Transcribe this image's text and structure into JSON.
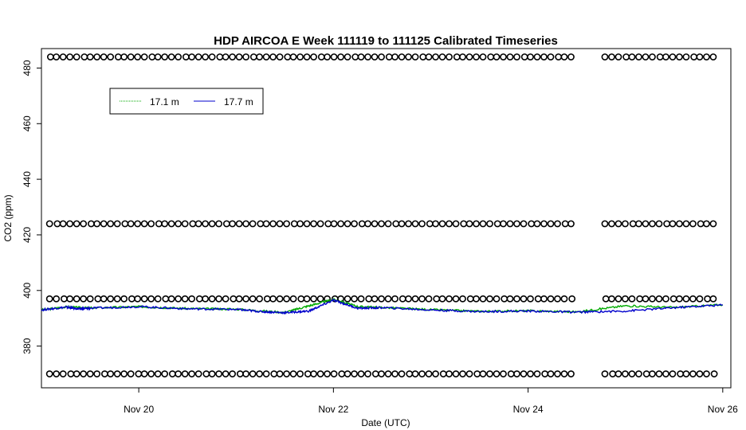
{
  "chart_data": {
    "type": "scatter",
    "title": "HDP AIRCOA E  Week 111119 to 111125  Calibrated Timeseries",
    "xlabel": "Date (UTC)",
    "ylabel": "CO2 (ppm)",
    "xlim": [
      "2011-11-19 00:00",
      "2011-11-26 02:00"
    ],
    "ylim": [
      365,
      487
    ],
    "x_ticks": [
      {
        "value": "2011-11-20",
        "label": "Nov 20"
      },
      {
        "value": "2011-11-22",
        "label": "Nov 22"
      },
      {
        "value": "2011-11-24",
        "label": "Nov 24"
      },
      {
        "value": "2011-11-26",
        "label": "Nov 26"
      }
    ],
    "y_ticks": [
      380,
      400,
      420,
      440,
      460,
      480
    ],
    "grid": false,
    "legend": {
      "placement": "top-left",
      "entries": [
        {
          "label": "17.1 m",
          "color": "#00aa00"
        },
        {
          "label": "17.7 m",
          "color": "#0000cc"
        }
      ]
    },
    "calibration_series": {
      "marker": "open-circle",
      "color": "#000000",
      "levels_ppm": [
        484,
        424,
        397,
        370
      ],
      "start": "2011-11-19 02:00",
      "end": "2011-11-25 22:00",
      "gap": [
        "2011-11-24 12:00",
        "2011-11-24 18:00"
      ],
      "spacing_hours": 1.67
    },
    "series": [
      {
        "name": "17.7 m",
        "color": "#0000cc",
        "points": [
          [
            "2011-11-19 00:00",
            393.0
          ],
          [
            "2011-11-19 06:00",
            394.0
          ],
          [
            "2011-11-19 09:00",
            393.4
          ],
          [
            "2011-11-19 12:00",
            393.6
          ],
          [
            "2011-11-20 00:00",
            394.2
          ],
          [
            "2011-11-20 12:00",
            393.4
          ],
          [
            "2011-11-21 00:00",
            393.2
          ],
          [
            "2011-11-21 06:00",
            392.4
          ],
          [
            "2011-11-21 12:00",
            392.0
          ],
          [
            "2011-11-21 18:00",
            392.6
          ],
          [
            "2011-11-22 00:00",
            396.5
          ],
          [
            "2011-11-22 06:00",
            393.6
          ],
          [
            "2011-11-22 12:00",
            393.8
          ],
          [
            "2011-11-23 00:00",
            393.0
          ],
          [
            "2011-11-23 12:00",
            392.4
          ],
          [
            "2011-11-24 00:00",
            392.6
          ],
          [
            "2011-11-24 12:00",
            392.2
          ],
          [
            "2011-11-25 00:00",
            392.6
          ],
          [
            "2011-11-25 12:00",
            393.8
          ],
          [
            "2011-11-26 00:00",
            394.8
          ]
        ]
      },
      {
        "name": "17.1 m",
        "color": "#00aa00",
        "points": [
          [
            "2011-11-19 00:00",
            393.0
          ],
          [
            "2011-11-19 06:00",
            394.1
          ],
          [
            "2011-11-19 12:00",
            393.7
          ],
          [
            "2011-11-20 00:00",
            394.2
          ],
          [
            "2011-11-20 12:00",
            393.5
          ],
          [
            "2011-11-21 00:00",
            393.3
          ],
          [
            "2011-11-21 12:00",
            392.1
          ],
          [
            "2011-11-21 18:00",
            394.5
          ],
          [
            "2011-11-22 00:00",
            396.8
          ],
          [
            "2011-11-22 06:00",
            394.2
          ],
          [
            "2011-11-22 12:00",
            393.9
          ],
          [
            "2011-11-23 00:00",
            393.1
          ],
          [
            "2011-11-23 12:00",
            392.5
          ],
          [
            "2011-11-24 00:00",
            392.7
          ],
          [
            "2011-11-24 12:00",
            392.3
          ],
          [
            "2011-11-25 00:00",
            394.5
          ],
          [
            "2011-11-25 12:00",
            393.9
          ],
          [
            "2011-11-26 00:00",
            394.9
          ]
        ]
      }
    ]
  }
}
